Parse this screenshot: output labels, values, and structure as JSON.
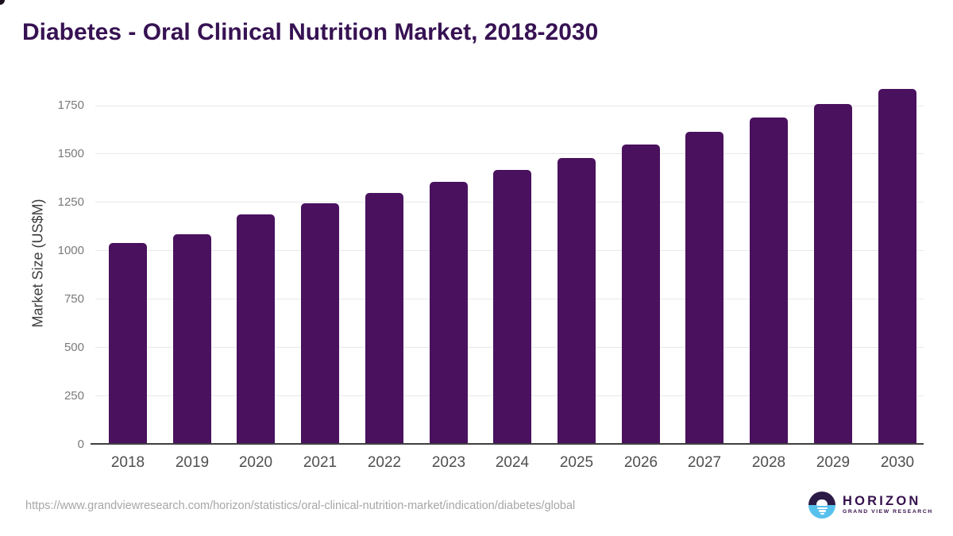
{
  "title": "Diabetes - Oral Clinical Nutrition Market, 2018-2030",
  "footer": {
    "source_url": "https://www.grandviewresearch.com/horizon/statistics/oral-clinical-nutrition-market/indication/diabetes/global"
  },
  "logo": {
    "name": "HORIZON",
    "tagline": "GRAND VIEW RESEARCH"
  },
  "colors": {
    "bar": "#4a115e",
    "title": "#371253",
    "gridline": "#e8e8e8",
    "axis_line": "#3f3f3f",
    "logo_dark_purple": "#2b1a45",
    "logo_light_blue": "#57c1ee"
  },
  "chart_data": {
    "type": "bar",
    "title": "Diabetes - Oral Clinical Nutrition Market, 2018-2030",
    "categories": [
      "2018",
      "2019",
      "2020",
      "2021",
      "2022",
      "2023",
      "2024",
      "2025",
      "2026",
      "2027",
      "2028",
      "2029",
      "2030"
    ],
    "values": [
      1040,
      1085,
      1185,
      1242,
      1298,
      1356,
      1416,
      1478,
      1545,
      1612,
      1688,
      1758,
      1836
    ],
    "xlabel": "",
    "ylabel": "Market Size (US$M)",
    "yticks": [
      0,
      250,
      500,
      750,
      1000,
      1250,
      1500,
      1750
    ],
    "ylim": [
      0,
      1875
    ],
    "grid": true,
    "legend": false,
    "bar_color": "#4a115e"
  }
}
